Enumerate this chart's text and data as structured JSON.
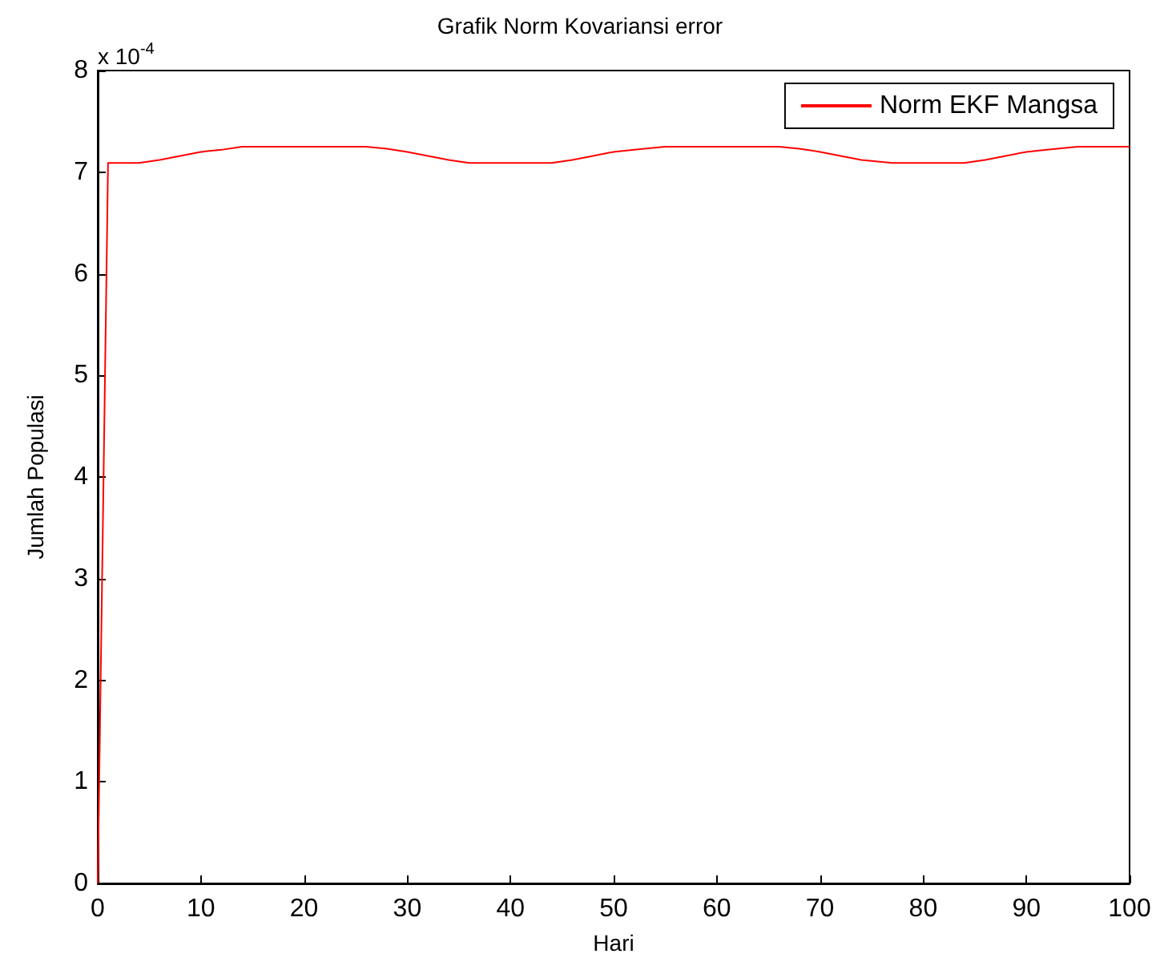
{
  "chart_data": {
    "type": "line",
    "title": "Grafik Norm Kovariansi error",
    "xlabel": "Hari",
    "ylabel": "Jumlah Populasi",
    "annotations": [
      "x 10$^{-4}$"
    ],
    "x": [
      0,
      1,
      4,
      6,
      8,
      10,
      12,
      14,
      26,
      28,
      30,
      32,
      34,
      36,
      44,
      46,
      48,
      50,
      52,
      55,
      66,
      68,
      70,
      72,
      74,
      77,
      84,
      86,
      88,
      90,
      92,
      95,
      100
    ],
    "series": [
      {
        "name": "Norm EKF Mangsa",
        "color": "#ff0000",
        "values": [
          0,
          7.09,
          7.09,
          7.12,
          7.16,
          7.2,
          7.22,
          7.25,
          7.25,
          7.23,
          7.2,
          7.16,
          7.12,
          7.09,
          7.09,
          7.12,
          7.16,
          7.2,
          7.22,
          7.25,
          7.25,
          7.23,
          7.2,
          7.16,
          7.12,
          7.09,
          7.09,
          7.12,
          7.16,
          7.2,
          7.22,
          7.25,
          7.25
        ]
      }
    ],
    "xlim": [
      0,
      100
    ],
    "xticks": [
      0,
      10,
      20,
      30,
      40,
      50,
      60,
      70,
      80,
      90,
      100
    ],
    "ylim": [
      0,
      8
    ],
    "yticks": [
      0,
      1,
      2,
      3,
      4,
      5,
      6,
      7,
      8
    ],
    "grid": false,
    "legend": "top right",
    "marker": "none",
    "line_style": "solid"
  }
}
